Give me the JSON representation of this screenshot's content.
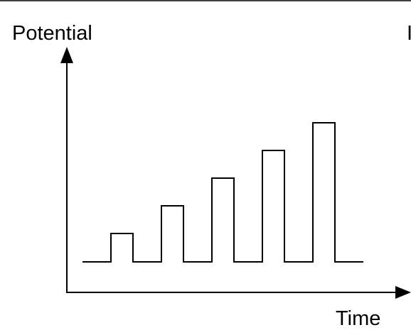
{
  "diagram": {
    "type": "staircase pulse waveform",
    "y_axis_label": "Potential",
    "x_axis_label": "Time",
    "edge_mark": "I",
    "pulse_count": 5,
    "pulse_heights_relative": [
      1,
      2,
      3,
      4,
      5
    ],
    "colors": {
      "background": "#ffffff",
      "stroke": "#000000"
    }
  }
}
